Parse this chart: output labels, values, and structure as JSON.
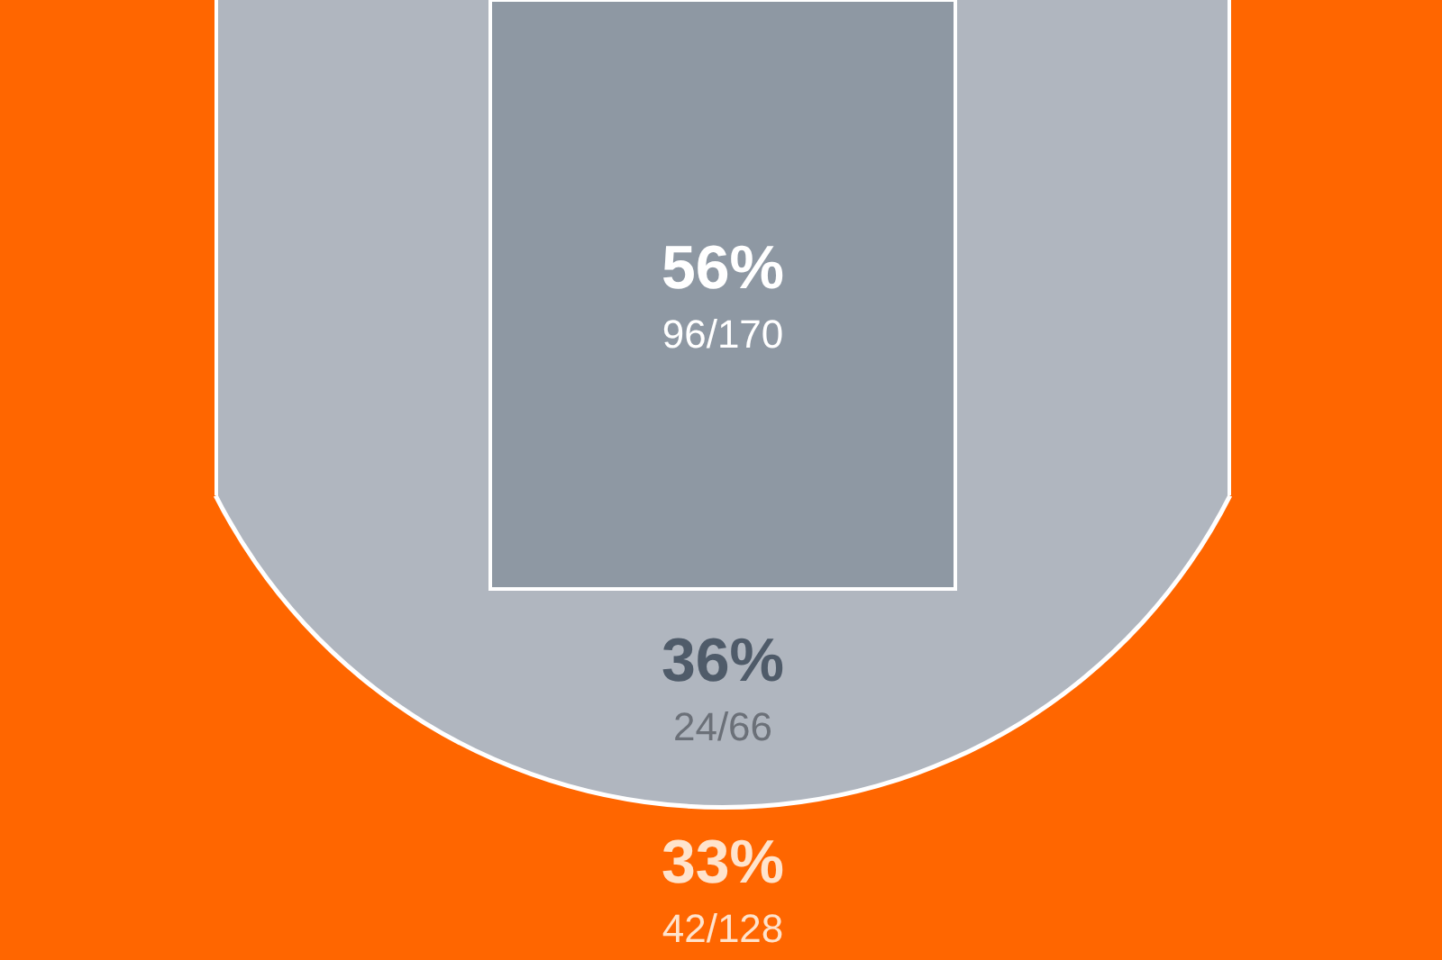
{
  "chart_data": {
    "type": "other",
    "categories": [
      null,
      null,
      null
    ],
    "values": [
      56,
      36,
      33
    ],
    "value_labels": [
      "56%",
      "36%",
      "33%"
    ],
    "colors": [
      "#8e98a3",
      "#b0b6bf",
      "#ff6600"
    ],
    "annotations": [
      "96/170",
      "24/66",
      "42/128"
    ]
  }
}
